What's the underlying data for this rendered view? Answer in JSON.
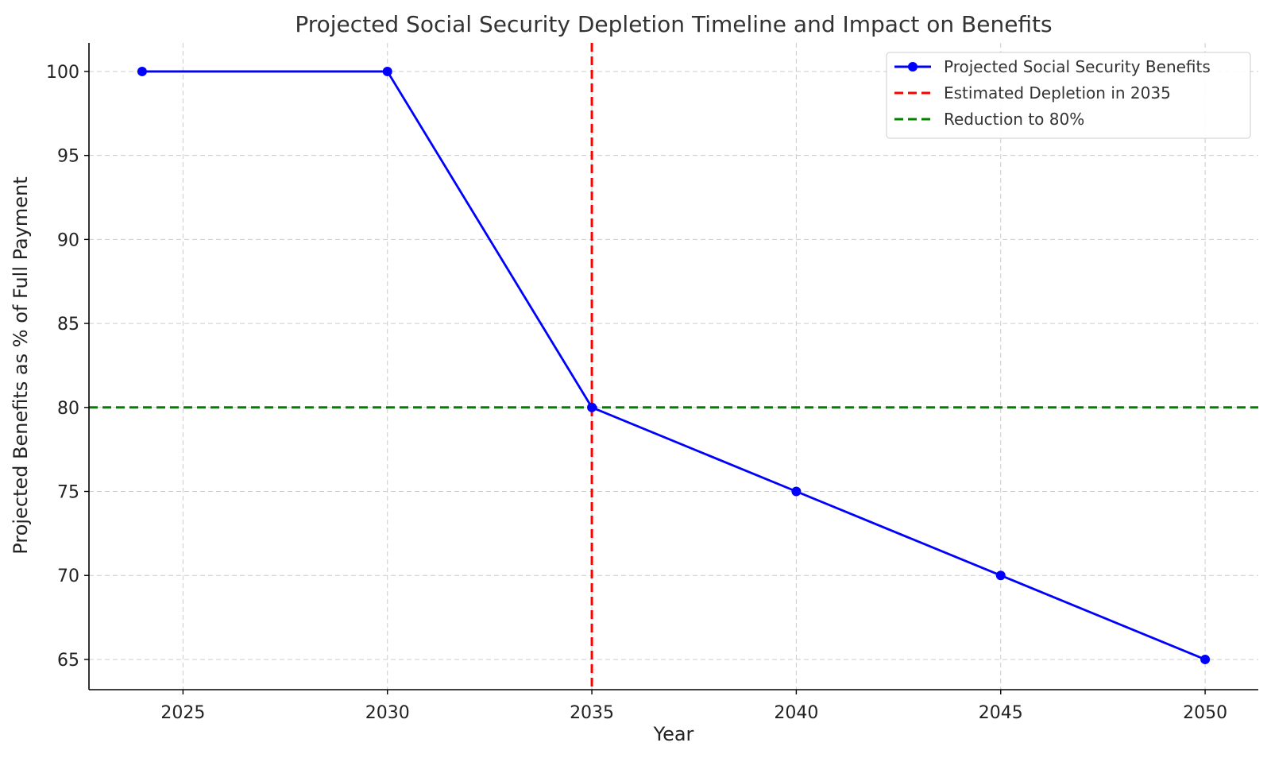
{
  "chart_data": {
    "type": "line",
    "title": "Projected Social Security Depletion Timeline and Impact on Benefits",
    "xlabel": "Year",
    "ylabel": "Projected Benefits as % of Full Payment",
    "xlim": [
      2022.7,
      2051.3
    ],
    "ylim": [
      63.2,
      101.7
    ],
    "xticks": [
      2025,
      2030,
      2035,
      2040,
      2045,
      2050
    ],
    "yticks": [
      65,
      70,
      75,
      80,
      85,
      90,
      95,
      100
    ],
    "grid": true,
    "legend_position": "top-right",
    "series": [
      {
        "name": "Projected Social Security Benefits",
        "x": [
          2024,
          2030,
          2035,
          2040,
          2045,
          2050
        ],
        "y": [
          100,
          100,
          80,
          75,
          70,
          65
        ],
        "color": "#0000ff",
        "marker": "circle",
        "line_style": "solid"
      }
    ],
    "reference_lines": [
      {
        "name": "Estimated Depletion in 2035",
        "orientation": "vertical",
        "x": 2035,
        "color": "#ff0000",
        "line_style": "dashed"
      },
      {
        "name": "Reduction to 80%",
        "orientation": "horizontal",
        "y": 80,
        "color": "#008000",
        "line_style": "dashed"
      }
    ]
  }
}
